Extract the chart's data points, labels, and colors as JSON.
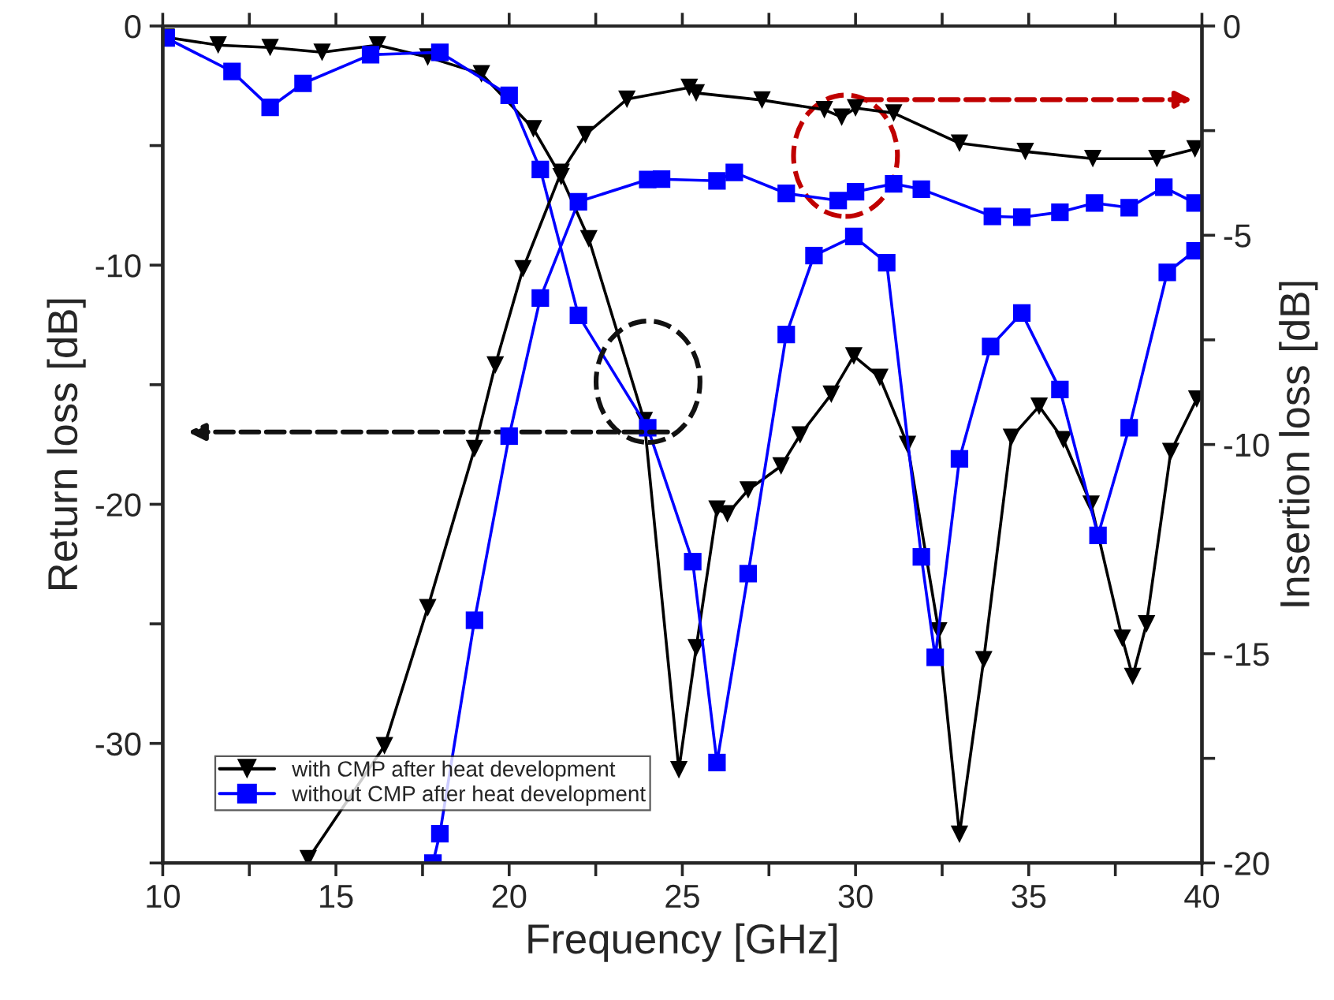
{
  "chart_data": {
    "type": "line",
    "xlabel": "Frequency [GHz]",
    "ylabel": "Return loss [dB]",
    "y2label": "Insertion loss [dB]",
    "xlim": [
      10,
      40
    ],
    "ylim": [
      -35,
      0
    ],
    "y2lim": [
      -20,
      0
    ],
    "xticks": [
      10,
      {
        "value": 12.5,
        "label": null
      },
      15,
      {
        "value": 17.5,
        "label": null
      },
      20,
      {
        "value": 22.5,
        "label": null
      },
      25,
      {
        "value": 27.5,
        "label": null
      },
      30,
      {
        "value": 32.5,
        "label": null
      },
      35,
      {
        "value": 37.5,
        "label": null
      },
      40
    ],
    "yticks": [
      {
        "value": -35,
        "label": null
      },
      -30,
      {
        "value": -25,
        "label": null
      },
      -20,
      {
        "value": -15,
        "label": null
      },
      -10,
      {
        "value": -5,
        "label": null
      },
      0
    ],
    "y2ticks": [
      -20,
      {
        "value": -17.5,
        "label": null
      },
      -15,
      {
        "value": -12.5,
        "label": null
      },
      -10,
      {
        "value": -7.5,
        "label": null
      },
      -5,
      {
        "value": -2.5,
        "label": null
      },
      0
    ],
    "grid": false,
    "legend": "bottom left",
    "series": [
      {
        "name": "with CMP after heat development",
        "color": "#000000",
        "marker": "triangle",
        "x": [
          10.1,
          11.6,
          13.1,
          14.6,
          16.2,
          17.65,
          19.2,
          20.7,
          21.5,
          22.3,
          23.9,
          24.9,
          25.4,
          26.0,
          26.3,
          26.9,
          27.85,
          28.4,
          29.3,
          29.95,
          30.7,
          31.5,
          32.4,
          33.0,
          33.7,
          34.5,
          35.3,
          36.0,
          36.8,
          37.7,
          38.0,
          38.4,
          39.1,
          39.85
        ],
        "values": [
          -0.47,
          -0.8,
          -0.9,
          -1.1,
          -0.8,
          -1.3,
          -2.0,
          -4.3,
          -6.3,
          -8.9,
          -16.5,
          -31.1,
          -26.0,
          -20.2,
          -20.4,
          -19.4,
          -18.4,
          -17.1,
          -15.4,
          -13.8,
          -14.7,
          -17.5,
          -25.3,
          -33.8,
          -26.5,
          -17.2,
          -15.9,
          -17.3,
          -20.0,
          -25.6,
          -27.2,
          -25.0,
          -17.8,
          -15.6
        ]
      },
      {
        "name": "without CMP after heat development",
        "color": "#0000ff",
        "marker": "square",
        "x": [
          10.1,
          12.0,
          13.1,
          14.05,
          16.0,
          18.0,
          20.0,
          20.9,
          22.0,
          24.0,
          25.3,
          26.0,
          26.9,
          28.0,
          28.8,
          29.95,
          30.9,
          31.9,
          32.3,
          33.0,
          33.9,
          34.8,
          35.9,
          37.0,
          37.9,
          39.0,
          39.8
        ],
        "values": [
          -0.5,
          -1.9,
          -3.4,
          -2.4,
          -1.2,
          -1.1,
          -2.9,
          -6.0,
          -12.1,
          -16.8,
          -22.4,
          -30.8,
          -22.9,
          -12.9,
          -9.6,
          -8.8,
          -9.9,
          -22.2,
          -26.4,
          -18.1,
          -13.4,
          -12.0,
          -15.2,
          -21.3,
          -16.8,
          -10.3,
          -9.4
        ]
      },
      {
        "color": "#000000",
        "marker": "triangle",
        "axis": "y2",
        "x": [
          14.2,
          16.4,
          17.65,
          19.0,
          19.6,
          20.4,
          21.5,
          22.2,
          23.4,
          25.2,
          25.4,
          27.3,
          29.1,
          29.6,
          30.0,
          31.1,
          33.0,
          34.9,
          36.85,
          38.7,
          39.8
        ],
        "values": [
          -19.9,
          -17.2,
          -13.9,
          -10.1,
          -8.1,
          -5.8,
          -3.5,
          -2.6,
          -1.75,
          -1.47,
          -1.6,
          -1.77,
          -2.0,
          -2.18,
          -1.96,
          -2.08,
          -2.8,
          -3.0,
          -3.17,
          -3.17,
          -2.94
        ]
      },
      {
        "color": "#0000ff",
        "marker": "square",
        "axis": "y2",
        "x": [
          17.8,
          18.0,
          19.0,
          20.0,
          20.9,
          22.0,
          24.0,
          24.4,
          26.0,
          26.5,
          28.0,
          29.5,
          30.0,
          31.1,
          31.9,
          33.95,
          34.8,
          35.9,
          36.9,
          37.9,
          38.9,
          39.8
        ],
        "values": [
          -20.0,
          -19.3,
          -14.2,
          -9.8,
          -6.5,
          -4.2,
          -3.67,
          -3.66,
          -3.7,
          -3.5,
          -4.0,
          -4.17,
          -3.96,
          -3.77,
          -3.9,
          -4.55,
          -4.57,
          -4.45,
          -4.23,
          -4.34,
          -3.85,
          -4.23
        ]
      }
    ]
  }
}
